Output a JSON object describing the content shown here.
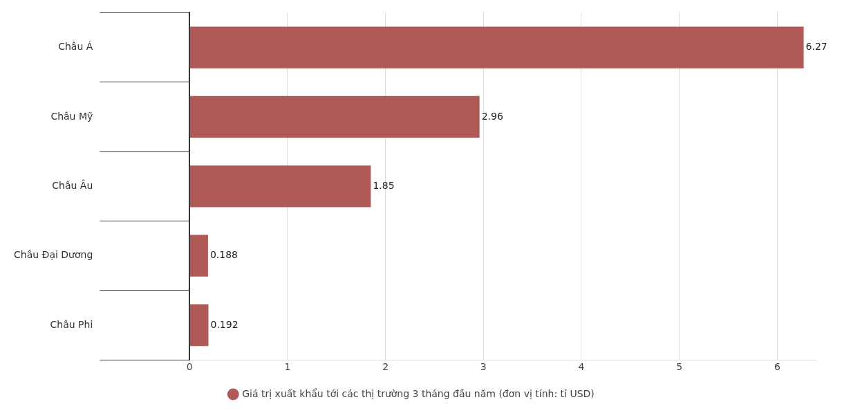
{
  "chart_data": {
    "type": "bar",
    "orientation": "horizontal",
    "categories": [
      "Châu Á",
      "Châu Mỹ",
      "Châu Âu",
      "Châu Đại Dương",
      "Châu Phi"
    ],
    "series": [
      {
        "name": "Giá trị xuất khẩu tới các thị trường 3 tháng đầu năm (đơn vị tính: tỉ USD)",
        "color": "#b05a58",
        "values": [
          6.27,
          2.96,
          1.85,
          0.188,
          0.192
        ]
      }
    ],
    "xlim": [
      0,
      6.4
    ],
    "xticks": [
      0,
      1,
      2,
      3,
      4,
      5,
      6
    ],
    "grid": true,
    "legend": "bottom",
    "data_labels": true
  }
}
